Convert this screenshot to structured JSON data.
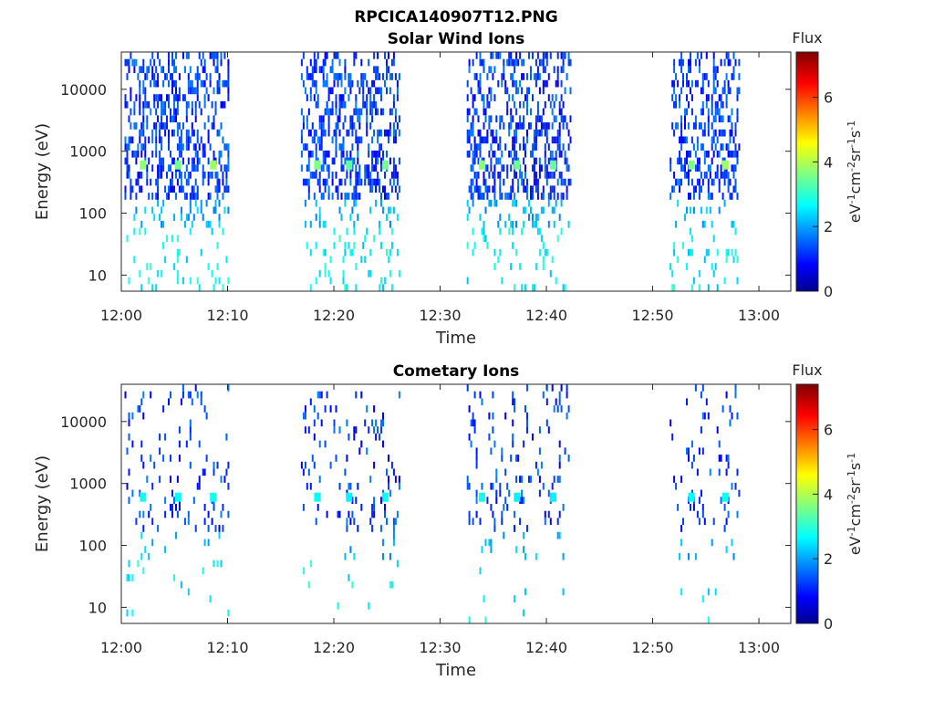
{
  "figure": {
    "title": "RPCICA140907T12.PNG"
  },
  "colorbar": {
    "label": "Flux",
    "unit_label_parts": [
      "eV",
      "-1",
      "cm",
      "-2",
      "sr",
      "-1",
      "s",
      "-1"
    ],
    "ticks": [
      "0",
      "2",
      "4",
      "6"
    ],
    "range": [
      0,
      7.4
    ],
    "colormap": "jet",
    "colors": [
      "#00008f",
      "#0000ff",
      "#00ffff",
      "#ffff00",
      "#ff0000",
      "#800000"
    ]
  },
  "chart_data": [
    {
      "type": "heatmap",
      "title": "Solar Wind Ions",
      "xlabel": "Time",
      "ylabel": "Energy (eV)",
      "x_ticks": [
        "12:00",
        "12:10",
        "12:20",
        "12:30",
        "12:40",
        "12:50",
        "13:00"
      ],
      "x_range_minutes": [
        0,
        63
      ],
      "y_ticks": [
        "10",
        "100",
        "1000",
        "10000"
      ],
      "y_scale": "log",
      "y_range": [
        5.5,
        40000
      ],
      "grid": false,
      "series": [
        {
          "bursts": [
            {
              "start_min": 0.3,
              "end_min": 10.0
            },
            {
              "start_min": 16.9,
              "end_min": 26.1
            },
            {
              "start_min": 32.5,
              "end_min": 42.2
            },
            {
              "start_min": 51.6,
              "end_min": 58.2
            }
          ],
          "hotspots": [
            {
              "time_min": 2.0,
              "energy_ev": 600,
              "flux": 3.8
            },
            {
              "time_min": 5.3,
              "energy_ev": 600,
              "flux": 3.6
            },
            {
              "time_min": 8.6,
              "energy_ev": 600,
              "flux": 3.9
            },
            {
              "time_min": 18.4,
              "energy_ev": 600,
              "flux": 3.7
            },
            {
              "time_min": 21.4,
              "energy_ev": 600,
              "flux": 3.5
            },
            {
              "time_min": 24.8,
              "energy_ev": 600,
              "flux": 3.6
            },
            {
              "time_min": 33.9,
              "energy_ev": 600,
              "flux": 3.8
            },
            {
              "time_min": 37.2,
              "energy_ev": 600,
              "flux": 3.6
            },
            {
              "time_min": 40.6,
              "energy_ev": 600,
              "flux": 3.5
            },
            {
              "time_min": 53.6,
              "energy_ev": 600,
              "flux": 3.7
            },
            {
              "time_min": 56.8,
              "energy_ev": 600,
              "flux": 3.9
            }
          ],
          "density": "high"
        }
      ]
    },
    {
      "type": "heatmap",
      "title": "Cometary Ions",
      "xlabel": "Time",
      "ylabel": "Energy (eV)",
      "x_ticks": [
        "12:00",
        "12:10",
        "12:20",
        "12:30",
        "12:40",
        "12:50",
        "13:00"
      ],
      "x_range_minutes": [
        0,
        63
      ],
      "y_ticks": [
        "10",
        "100",
        "1000",
        "10000"
      ],
      "y_scale": "log",
      "y_range": [
        5.5,
        40000
      ],
      "grid": false,
      "series": [
        {
          "bursts": [
            {
              "start_min": 0.3,
              "end_min": 10.0
            },
            {
              "start_min": 16.9,
              "end_min": 26.1
            },
            {
              "start_min": 32.5,
              "end_min": 42.2
            },
            {
              "start_min": 51.6,
              "end_min": 58.2
            }
          ],
          "hotspots": [
            {
              "time_min": 2.0,
              "energy_ev": 600,
              "flux": 2.9
            },
            {
              "time_min": 5.3,
              "energy_ev": 600,
              "flux": 2.8
            },
            {
              "time_min": 8.6,
              "energy_ev": 600,
              "flux": 2.9
            },
            {
              "time_min": 18.4,
              "energy_ev": 600,
              "flux": 2.8
            },
            {
              "time_min": 21.4,
              "energy_ev": 600,
              "flux": 2.7
            },
            {
              "time_min": 24.8,
              "energy_ev": 600,
              "flux": 2.8
            },
            {
              "time_min": 33.9,
              "energy_ev": 600,
              "flux": 2.9
            },
            {
              "time_min": 37.2,
              "energy_ev": 600,
              "flux": 2.7
            },
            {
              "time_min": 40.6,
              "energy_ev": 600,
              "flux": 2.7
            },
            {
              "time_min": 53.6,
              "energy_ev": 600,
              "flux": 2.8
            },
            {
              "time_min": 56.8,
              "energy_ev": 600,
              "flux": 2.9
            }
          ],
          "density": "low"
        }
      ]
    }
  ]
}
